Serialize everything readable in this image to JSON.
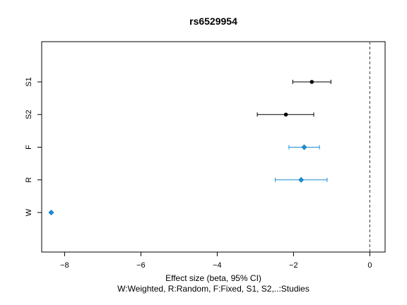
{
  "chart_data": {
    "type": "scatter",
    "subtype": "forest-plot",
    "title": "rs6529954",
    "xlabel": "Effect size (beta, 95% CI)",
    "subxlabel": "W:Weighted, R:Random, F:Fixed, S1, S2,..:Studies",
    "ylabel": "",
    "xlim": [
      -8.6,
      0.4
    ],
    "xticks": [
      -8,
      -6,
      -4,
      -2,
      0
    ],
    "reference_line": {
      "x": 0,
      "style": "dashed",
      "color": "#555555"
    },
    "grid": false,
    "legend": "none",
    "rows": [
      {
        "label": "S1",
        "estimate": -1.52,
        "lower": -2.02,
        "upper": -1.02,
        "marker": "circle",
        "color": "#000000"
      },
      {
        "label": "S2",
        "estimate": -2.2,
        "lower": -2.95,
        "upper": -1.47,
        "marker": "circle",
        "color": "#000000"
      },
      {
        "label": "F",
        "estimate": -1.72,
        "lower": -2.12,
        "upper": -1.32,
        "marker": "diamond",
        "color": "#1a8fd6"
      },
      {
        "label": "R",
        "estimate": -1.8,
        "lower": -2.48,
        "upper": -1.12,
        "marker": "diamond",
        "color": "#1a8fd6"
      },
      {
        "label": "W",
        "estimate": -8.35,
        "lower": -8.35,
        "upper": -8.35,
        "marker": "diamond",
        "color": "#1a8fd6"
      }
    ]
  }
}
